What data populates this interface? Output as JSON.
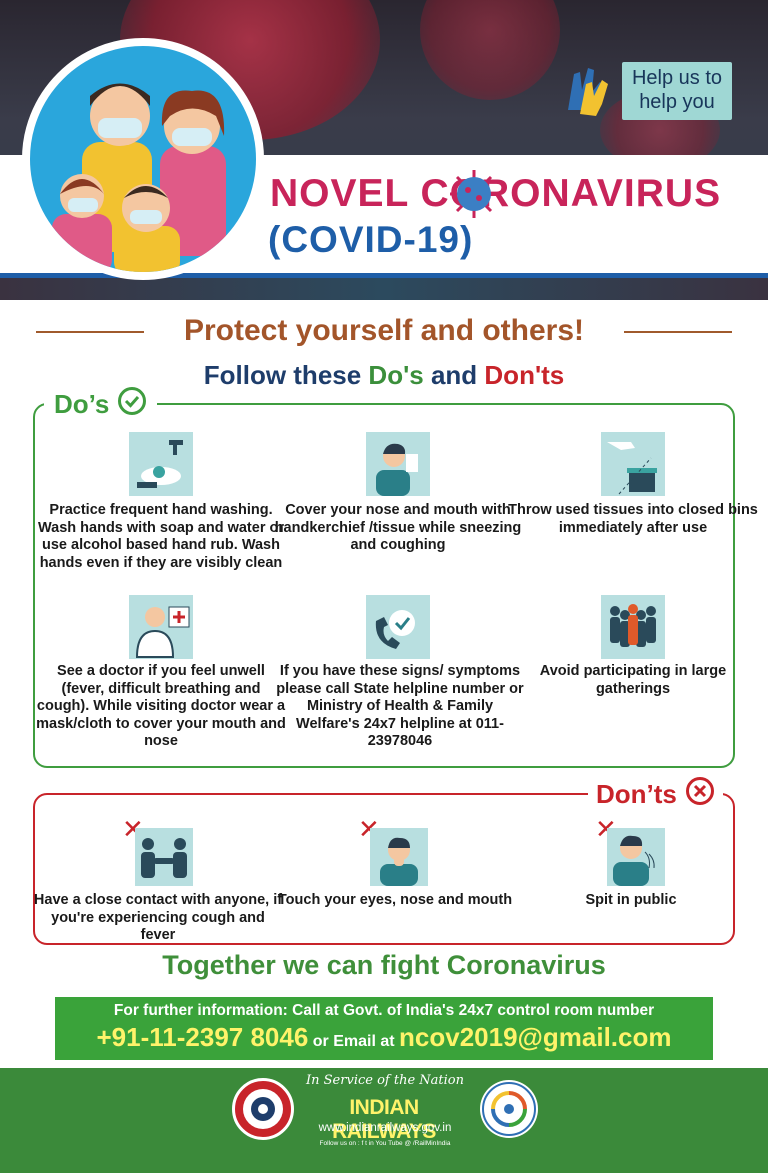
{
  "header": {
    "help_badge_line1": "Help us to",
    "help_badge_line2": "help you",
    "title_line1": "NOVEL CORONAVIRUS",
    "title_line2": "(COVID-19)"
  },
  "headings": {
    "protect": "Protect yourself and others!",
    "follow_prefix": "Follow these ",
    "follow_dos": "Do's",
    "follow_and": " and ",
    "follow_donts": "Don'ts"
  },
  "dos": {
    "label": "Do’s",
    "items": [
      {
        "icon": "hand-washing-icon",
        "text": "Practice frequent hand washing. Wash hands with soap and water or use alcohol based hand rub. Wash hands even if they are visibly clean"
      },
      {
        "icon": "sneeze-cover-icon",
        "text": "Cover your nose and mouth with handkerchief /tissue while sneezing and coughing"
      },
      {
        "icon": "tissue-bin-icon",
        "text": "Throw used tissues into closed bins immediately after use"
      },
      {
        "icon": "doctor-icon",
        "text": "See a doctor if you feel unwell (fever, difficult breathing and cough). While visiting doctor wear a mask/cloth to cover your mouth and nose"
      },
      {
        "icon": "helpline-phone-icon",
        "text": "If you have these signs/ symptoms please call State helpline number or Ministry of Health & Family Welfare's 24x7 helpline at 011-23978046"
      },
      {
        "icon": "crowd-icon",
        "text": "Avoid participating in large gatherings"
      }
    ]
  },
  "donts": {
    "label": "Don’ts",
    "items": [
      {
        "icon": "handshake-icon",
        "text": "Have a close contact with anyone, if you're experiencing cough and fever"
      },
      {
        "icon": "touch-face-icon",
        "text": "Touch your eyes, nose and mouth"
      },
      {
        "icon": "spit-icon",
        "text": "Spit in public"
      }
    ]
  },
  "together": "Together we can fight Coronavirus",
  "info": {
    "line1": "For further information: Call at Govt. of India's 24x7 control room number",
    "phone": "+91-11-2397 8046",
    "email_label": " or Email at ",
    "email": "ncov2019@gmail.com"
  },
  "footer": {
    "service": "In Service of the Nation",
    "org": "INDIAN RAILWAYS",
    "url": "www.indianrailways.gov.in",
    "follow": "Follow us on :   f   t   in   You Tube   @   /RailMinIndia"
  },
  "colors": {
    "title_pink": "#c8245a",
    "title_blue": "#1e5ea8",
    "dos_green": "#3f9d3f",
    "donts_red": "#c8242a",
    "info_green": "#3aa33a",
    "phone_yellow": "#fff36a"
  }
}
